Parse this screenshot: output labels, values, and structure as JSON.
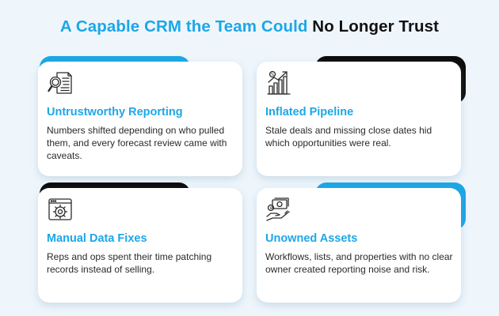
{
  "title": {
    "part1": "A Capable CRM the Team Could",
    "part2": "No Longer Trust"
  },
  "colors": {
    "accent": "#1ca7e6",
    "dark": "#0c0c0c",
    "background": "#eef6fc",
    "card": "#ffffff"
  },
  "cards": [
    {
      "icon": "document-magnifier-icon",
      "title": "Untrustworthy Reporting",
      "desc": "Numbers shifted depending on who pulled them, and every forecast review came with caveats."
    },
    {
      "icon": "bar-chart-growth-icon",
      "title": "Inflated Pipeline",
      "desc": "Stale deals and missing close dates hid which opportunities were real."
    },
    {
      "icon": "gear-browser-icon",
      "title": "Manual Data Fixes",
      "desc": "Reps and ops spent their time patching records instead of selling."
    },
    {
      "icon": "money-hand-icon",
      "title": "Unowned Assets",
      "desc": "Workflows, lists, and properties with no clear owner created reporting noise and risk."
    }
  ]
}
